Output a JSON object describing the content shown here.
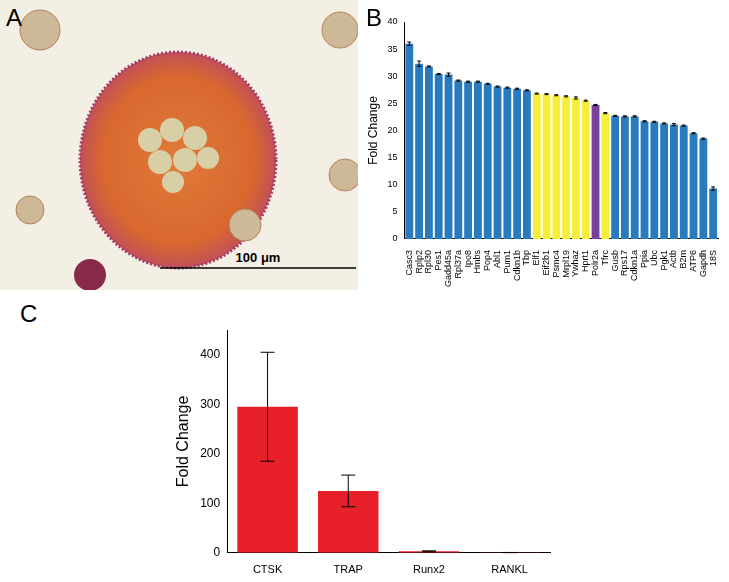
{
  "image": {
    "panel": "A",
    "scale_bar": "100 μm"
  },
  "chart_data": [
    {
      "panel": "B",
      "type": "bar",
      "y_label": "Fold Change",
      "categories": [
        "Casc3",
        "Rplp2",
        "Rpl30",
        "Pes1",
        "Gadd45a",
        "Rpl37a",
        "Ipo8",
        "Hmbs",
        "Pop4",
        "Abl1",
        "Pum1",
        "Cdkn1b",
        "Tbp",
        "Elf1",
        "Eif2b1",
        "Psmc4",
        "Mrpl19",
        "Ywhaz",
        "Hprt1",
        "Polr2a",
        "Tfrc",
        "Gusb",
        "Rps17",
        "Cdkn1a",
        "Ppia",
        "Ubc",
        "Pgk1",
        "Actb",
        "B2m",
        "ATP6",
        "Gapdh",
        "18S"
      ],
      "values": [
        36.0,
        32.3,
        31.8,
        30.4,
        30.3,
        29.2,
        29.0,
        29.0,
        28.6,
        28.1,
        27.9,
        27.7,
        27.4,
        26.8,
        26.7,
        26.5,
        26.3,
        26.0,
        25.5,
        24.7,
        23.2,
        22.7,
        22.6,
        22.6,
        21.7,
        21.6,
        21.3,
        21.1,
        20.9,
        19.5,
        18.5,
        9.3
      ],
      "errors": [
        0.3,
        0.5,
        0.1,
        0.1,
        0.3,
        0.1,
        0.1,
        0.1,
        0.1,
        0.1,
        0.1,
        0.1,
        0.1,
        0.1,
        0.1,
        0.1,
        0.1,
        0.2,
        0.1,
        0.1,
        0.1,
        0.1,
        0.1,
        0.1,
        0.1,
        0.1,
        0.1,
        0.2,
        0.1,
        0.1,
        0.1,
        0.3
      ],
      "colors": [
        "#2a7bbd",
        "#2a7bbd",
        "#2a7bbd",
        "#2a7bbd",
        "#2a7bbd",
        "#2a7bbd",
        "#2a7bbd",
        "#2a7bbd",
        "#2a7bbd",
        "#2a7bbd",
        "#2a7bbd",
        "#2a7bbd",
        "#2a7bbd",
        "#f5ef3c",
        "#f5ef3c",
        "#f5ef3c",
        "#f5ef3c",
        "#f5ef3c",
        "#f5ef3c",
        "#7b3f9e",
        "#f5ef3c",
        "#2a7bbd",
        "#2a7bbd",
        "#2a7bbd",
        "#2a7bbd",
        "#2a7bbd",
        "#2a7bbd",
        "#2a7bbd",
        "#2a7bbd",
        "#2a7bbd",
        "#2a7bbd",
        "#2a7bbd"
      ],
      "ylim": [
        0,
        40
      ],
      "yticks": [
        0,
        5,
        10,
        15,
        20,
        25,
        30,
        35,
        40
      ],
      "grid": false
    },
    {
      "panel": "C",
      "type": "bar",
      "y_label": "Fold Change",
      "categories": [
        "CTSK",
        "TRAP",
        "Runx2",
        "RANKL"
      ],
      "values": [
        295,
        125,
        3,
        0.5
      ],
      "errors": [
        110,
        32,
        1,
        0.2
      ],
      "color": "#e8202a",
      "ylim": [
        0,
        450
      ],
      "yticks": [
        0,
        100,
        200,
        300,
        400
      ],
      "grid": false
    }
  ]
}
